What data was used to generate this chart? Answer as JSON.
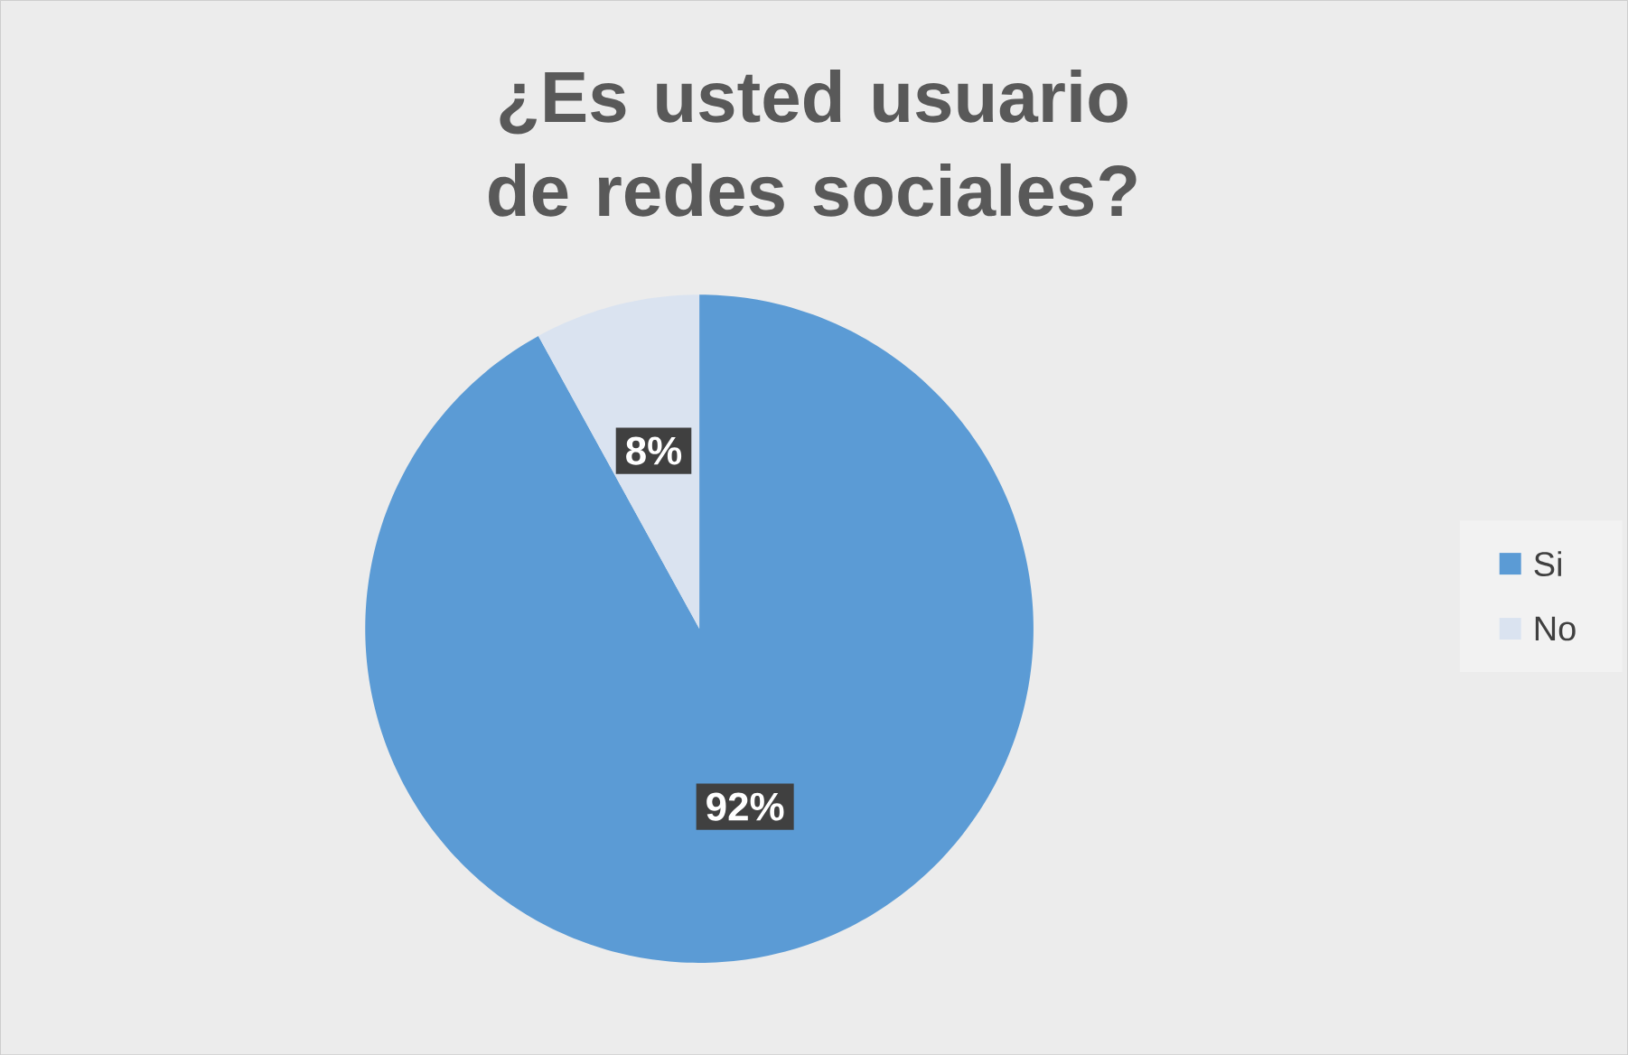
{
  "chart_data": {
    "type": "pie",
    "title": "¿Es usted usuario de redes sociales?",
    "categories": [
      "Si",
      "No"
    ],
    "values": [
      92,
      8
    ],
    "value_labels": [
      "92%",
      "8%"
    ],
    "colors": [
      "#5b9bd5",
      "#dae3f0"
    ],
    "legend": "right"
  }
}
